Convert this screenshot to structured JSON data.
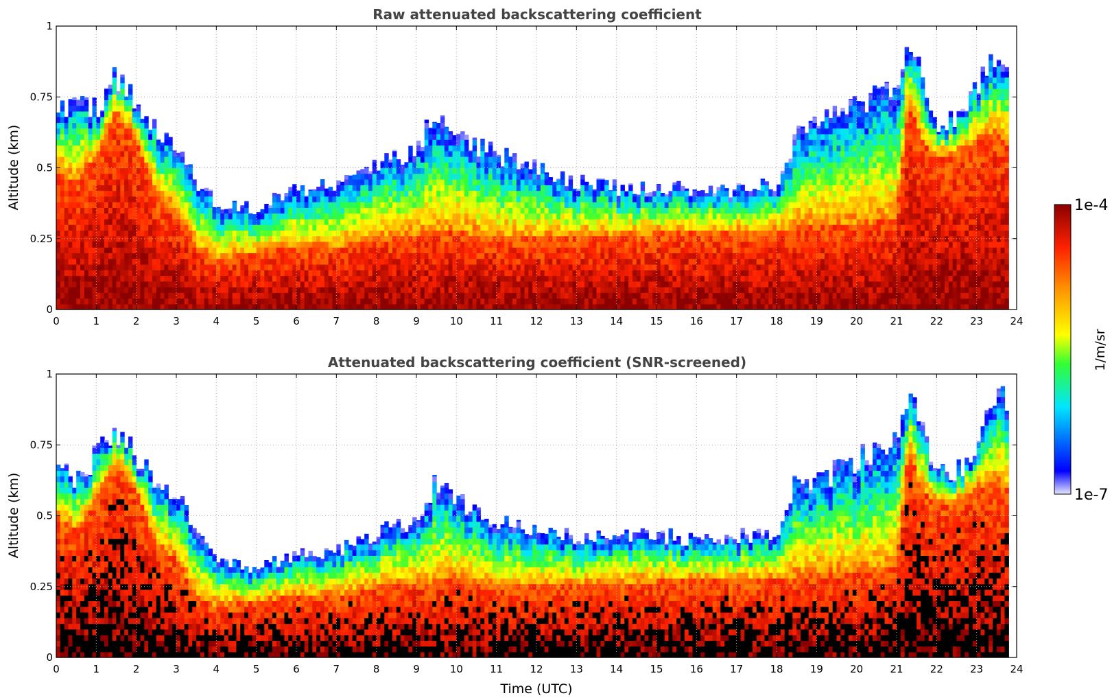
{
  "chart_data": [
    {
      "type": "heatmap",
      "title": "Raw attenuated backscattering coefficient",
      "xlabel": "",
      "ylabel": "Altitude (km)",
      "xlim": [
        0,
        24
      ],
      "ylim": [
        0,
        1
      ],
      "x_ticks": [
        "0",
        "1",
        "2",
        "3",
        "4",
        "5",
        "6",
        "7",
        "8",
        "9",
        "10",
        "11",
        "12",
        "13",
        "14",
        "15",
        "16",
        "17",
        "18",
        "19",
        "20",
        "21",
        "22",
        "23",
        "24"
      ],
      "y_ticks": [
        "0",
        "0.25",
        "0.5",
        "0.75",
        "1"
      ],
      "grid": true,
      "screened": false,
      "data_end_time": 23.8,
      "layer_top_km": {
        "time": [
          0,
          0.5,
          1,
          1.5,
          2,
          2.5,
          3,
          3.5,
          4,
          5,
          6,
          7,
          8,
          9,
          9.5,
          10,
          11,
          12,
          13,
          14,
          15,
          16,
          17,
          18,
          18.5,
          19,
          20,
          21,
          21.3,
          21.6,
          22,
          22.5,
          23,
          23.5,
          23.8
        ],
        "value": [
          0.72,
          0.7,
          0.72,
          0.82,
          0.72,
          0.62,
          0.6,
          0.45,
          0.38,
          0.36,
          0.42,
          0.45,
          0.52,
          0.56,
          0.7,
          0.6,
          0.55,
          0.5,
          0.45,
          0.43,
          0.43,
          0.42,
          0.42,
          0.45,
          0.62,
          0.65,
          0.72,
          0.78,
          0.97,
          0.85,
          0.65,
          0.66,
          0.76,
          0.9,
          0.82
        ]
      },
      "dense_layer_top_km": {
        "time": [
          0,
          0.5,
          1,
          1.5,
          2,
          2.5,
          3,
          3.5,
          4,
          5,
          6,
          7,
          8,
          9,
          10,
          11,
          12,
          13,
          14,
          15,
          16,
          17,
          18,
          19,
          20,
          21,
          21.3,
          21.6,
          22,
          22.5,
          23,
          23.5,
          23.8
        ],
        "value": [
          0.5,
          0.45,
          0.55,
          0.7,
          0.6,
          0.4,
          0.35,
          0.22,
          0.18,
          0.2,
          0.22,
          0.22,
          0.25,
          0.26,
          0.28,
          0.25,
          0.25,
          0.26,
          0.26,
          0.27,
          0.27,
          0.27,
          0.28,
          0.3,
          0.3,
          0.32,
          0.75,
          0.6,
          0.55,
          0.55,
          0.6,
          0.62,
          0.6
        ]
      },
      "colorbar": {
        "min": "1e-7",
        "max": "1e-4",
        "label": "1/m/sr",
        "scale": "log"
      }
    },
    {
      "type": "heatmap",
      "title": "Attenuated backscattering coefficient (SNR-screened)",
      "xlabel": "Time (UTC)",
      "ylabel": "Altitude (km)",
      "xlim": [
        0,
        24
      ],
      "ylim": [
        0,
        1
      ],
      "x_ticks": [
        "0",
        "1",
        "2",
        "3",
        "4",
        "5",
        "6",
        "7",
        "8",
        "9",
        "10",
        "11",
        "12",
        "13",
        "14",
        "15",
        "16",
        "17",
        "18",
        "19",
        "20",
        "21",
        "22",
        "23",
        "24"
      ],
      "y_ticks": [
        "0",
        "0.25",
        "0.5",
        "0.75",
        "1"
      ],
      "grid": true,
      "screened": true,
      "data_end_time": 23.8,
      "layer_top_km": {
        "time": [
          0,
          0.5,
          1,
          1.5,
          2,
          2.5,
          3,
          3.5,
          4,
          5,
          6,
          7,
          8,
          9,
          9.5,
          10,
          11,
          12,
          13,
          14,
          15,
          16,
          17,
          18,
          18.5,
          19,
          20,
          21,
          21.3,
          21.6,
          22,
          22.5,
          23,
          23.5,
          23.8
        ],
        "value": [
          0.72,
          0.62,
          0.72,
          0.8,
          0.72,
          0.6,
          0.58,
          0.45,
          0.35,
          0.32,
          0.36,
          0.38,
          0.44,
          0.48,
          0.62,
          0.55,
          0.48,
          0.45,
          0.42,
          0.42,
          0.43,
          0.42,
          0.43,
          0.44,
          0.62,
          0.62,
          0.7,
          0.75,
          0.98,
          0.85,
          0.65,
          0.65,
          0.75,
          0.97,
          0.82
        ]
      },
      "dense_layer_top_km": {
        "time": [
          0,
          0.5,
          1,
          1.5,
          2,
          2.5,
          3,
          3.5,
          4,
          5,
          6,
          7,
          8,
          9,
          10,
          11,
          12,
          13,
          14,
          15,
          16,
          17,
          18,
          19,
          20,
          21,
          21.3,
          21.6,
          22,
          22.5,
          23,
          23.5,
          23.8
        ],
        "value": [
          0.5,
          0.45,
          0.55,
          0.7,
          0.6,
          0.4,
          0.35,
          0.22,
          0.18,
          0.2,
          0.22,
          0.22,
          0.25,
          0.26,
          0.28,
          0.25,
          0.25,
          0.26,
          0.26,
          0.27,
          0.27,
          0.27,
          0.28,
          0.3,
          0.3,
          0.32,
          0.75,
          0.6,
          0.55,
          0.55,
          0.6,
          0.62,
          0.6
        ]
      },
      "colorbar": {
        "min": "1e-7",
        "max": "1e-4",
        "label": "1/m/sr",
        "scale": "log"
      }
    }
  ],
  "colorbar": {
    "max_label": "1e-4",
    "min_label": "1e-7",
    "unit_label": "1/m/sr",
    "colors": [
      "#e6e6ff",
      "#0000ff",
      "#00e5ff",
      "#33ff33",
      "#ffff00",
      "#ff9900",
      "#ff2200",
      "#8b0000"
    ]
  }
}
